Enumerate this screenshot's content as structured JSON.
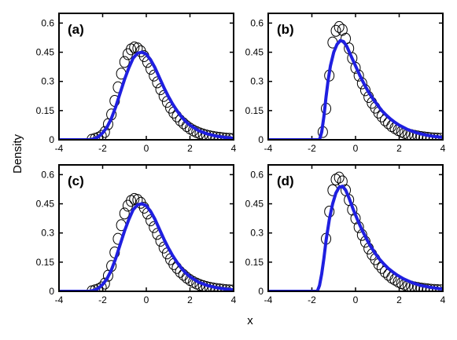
{
  "figure": {
    "ylabel": "Density",
    "xlabel": "x",
    "colors": {
      "curve": "#1f1fe0",
      "markers": "#000000",
      "frame": "#000000"
    }
  },
  "chart_data": [
    {
      "type": "line",
      "panel_label": "(a)",
      "xlim": [
        -4,
        4
      ],
      "ylim": [
        0,
        0.65
      ],
      "x_ticks": [
        -4,
        -2,
        0,
        2,
        4
      ],
      "x_tick_labels": [
        "-4",
        "-2",
        "0",
        "2",
        "4"
      ],
      "y_ticks": [
        0,
        0.15,
        0.3,
        0.45,
        0.6
      ],
      "y_tick_labels": [
        "0",
        "0.15",
        "0.3",
        "0.45",
        "0.6"
      ],
      "grid": false,
      "series": [
        {
          "kind": "markers",
          "x": [
            -2.5,
            -2.35,
            -2.2,
            -2.05,
            -1.9,
            -1.75,
            -1.6,
            -1.45,
            -1.3,
            -1.15,
            -1.0,
            -0.85,
            -0.7,
            -0.55,
            -0.4,
            -0.25,
            -0.1,
            0.05,
            0.2,
            0.35,
            0.5,
            0.65,
            0.8,
            0.95,
            1.1,
            1.25,
            1.4,
            1.55,
            1.7,
            1.85,
            2.0,
            2.15,
            2.3,
            2.45,
            2.6,
            2.75,
            2.9,
            3.05,
            3.2,
            3.35,
            3.5,
            3.65,
            3.8,
            3.95
          ],
          "y": [
            0.0,
            0.005,
            0.01,
            0.02,
            0.04,
            0.08,
            0.13,
            0.2,
            0.27,
            0.34,
            0.4,
            0.44,
            0.465,
            0.475,
            0.47,
            0.455,
            0.43,
            0.4,
            0.365,
            0.33,
            0.295,
            0.26,
            0.225,
            0.195,
            0.165,
            0.14,
            0.12,
            0.1,
            0.085,
            0.07,
            0.058,
            0.048,
            0.04,
            0.033,
            0.027,
            0.022,
            0.018,
            0.015,
            0.012,
            0.01,
            0.008,
            0.006,
            0.005,
            0.004
          ]
        },
        {
          "kind": "curve",
          "x": [
            -4,
            -2.6,
            -2.4,
            -2.2,
            -2.0,
            -1.8,
            -1.6,
            -1.4,
            -1.2,
            -1.0,
            -0.8,
            -0.6,
            -0.4,
            -0.2,
            0.0,
            0.2,
            0.4,
            0.6,
            0.8,
            1.0,
            1.2,
            1.4,
            1.6,
            1.8,
            2.0,
            2.4,
            2.8,
            3.2,
            3.6,
            4.0
          ],
          "y": [
            0.0,
            0.0,
            0.005,
            0.015,
            0.035,
            0.065,
            0.11,
            0.17,
            0.24,
            0.31,
            0.37,
            0.42,
            0.445,
            0.45,
            0.44,
            0.41,
            0.37,
            0.32,
            0.27,
            0.225,
            0.185,
            0.15,
            0.12,
            0.095,
            0.075,
            0.047,
            0.03,
            0.019,
            0.012,
            0.008
          ]
        }
      ]
    },
    {
      "type": "line",
      "panel_label": "(b)",
      "xlim": [
        -4,
        4
      ],
      "ylim": [
        0,
        0.65
      ],
      "x_ticks": [
        -4,
        -2,
        0,
        2,
        4
      ],
      "x_tick_labels": [
        "-4",
        "-2",
        "0",
        "2",
        "4"
      ],
      "y_ticks": [
        0,
        0.15,
        0.3,
        0.45,
        0.6
      ],
      "y_tick_labels": [
        "0",
        "0.15",
        "0.3",
        "0.45",
        "0.6"
      ],
      "grid": false,
      "series": [
        {
          "kind": "markers",
          "x": [
            -1.5,
            -1.35,
            -1.2,
            -1.05,
            -0.9,
            -0.75,
            -0.6,
            -0.45,
            -0.3,
            -0.15,
            0.0,
            0.15,
            0.3,
            0.45,
            0.6,
            0.75,
            0.9,
            1.05,
            1.2,
            1.35,
            1.5,
            1.65,
            1.8,
            1.95,
            2.1,
            2.25,
            2.4,
            2.55,
            2.7,
            2.85,
            3.0,
            3.15,
            3.3,
            3.45,
            3.6,
            3.75,
            3.9
          ],
          "y": [
            0.04,
            0.16,
            0.33,
            0.5,
            0.56,
            0.58,
            0.565,
            0.52,
            0.47,
            0.42,
            0.37,
            0.33,
            0.29,
            0.255,
            0.22,
            0.19,
            0.165,
            0.14,
            0.12,
            0.1,
            0.085,
            0.07,
            0.06,
            0.05,
            0.042,
            0.035,
            0.029,
            0.024,
            0.02,
            0.017,
            0.014,
            0.012,
            0.01,
            0.008,
            0.007,
            0.006,
            0.005
          ]
        },
        {
          "kind": "curve",
          "x": [
            -4,
            -1.65,
            -1.55,
            -1.45,
            -1.35,
            -1.25,
            -1.15,
            -1.0,
            -0.85,
            -0.7,
            -0.55,
            -0.4,
            -0.2,
            0.0,
            0.2,
            0.4,
            0.6,
            0.8,
            1.0,
            1.2,
            1.4,
            1.6,
            1.8,
            2.0,
            2.4,
            2.8,
            3.2,
            3.6,
            4.0
          ],
          "y": [
            0.0,
            0.0,
            0.04,
            0.12,
            0.22,
            0.31,
            0.38,
            0.45,
            0.49,
            0.51,
            0.505,
            0.48,
            0.43,
            0.38,
            0.33,
            0.285,
            0.245,
            0.21,
            0.18,
            0.15,
            0.127,
            0.107,
            0.09,
            0.075,
            0.052,
            0.036,
            0.025,
            0.017,
            0.012
          ]
        }
      ]
    },
    {
      "type": "line",
      "panel_label": "(c)",
      "xlim": [
        -4,
        4
      ],
      "ylim": [
        0,
        0.65
      ],
      "x_ticks": [
        -4,
        -2,
        0,
        2,
        4
      ],
      "x_tick_labels": [
        "-4",
        "-2",
        "0",
        "2",
        "4"
      ],
      "y_ticks": [
        0,
        0.15,
        0.3,
        0.45,
        0.6
      ],
      "y_tick_labels": [
        "0",
        "0.15",
        "0.3",
        "0.45",
        "0.6"
      ],
      "grid": false,
      "series": [
        {
          "kind": "markers",
          "x": [
            -2.5,
            -2.35,
            -2.2,
            -2.05,
            -1.9,
            -1.75,
            -1.6,
            -1.45,
            -1.3,
            -1.15,
            -1.0,
            -0.85,
            -0.7,
            -0.55,
            -0.4,
            -0.25,
            -0.1,
            0.05,
            0.2,
            0.35,
            0.5,
            0.65,
            0.8,
            0.95,
            1.1,
            1.25,
            1.4,
            1.55,
            1.7,
            1.85,
            2.0,
            2.15,
            2.3,
            2.45,
            2.6,
            2.75,
            2.9,
            3.05,
            3.2,
            3.35,
            3.5,
            3.65,
            3.8,
            3.95
          ],
          "y": [
            0.0,
            0.005,
            0.01,
            0.02,
            0.04,
            0.08,
            0.13,
            0.2,
            0.27,
            0.34,
            0.4,
            0.44,
            0.465,
            0.475,
            0.47,
            0.455,
            0.43,
            0.4,
            0.365,
            0.33,
            0.295,
            0.26,
            0.225,
            0.195,
            0.165,
            0.14,
            0.12,
            0.1,
            0.085,
            0.07,
            0.058,
            0.048,
            0.04,
            0.033,
            0.027,
            0.022,
            0.018,
            0.015,
            0.012,
            0.01,
            0.008,
            0.006,
            0.005,
            0.004
          ]
        },
        {
          "kind": "curve",
          "x": [
            -4,
            -2.6,
            -2.4,
            -2.2,
            -2.0,
            -1.8,
            -1.6,
            -1.4,
            -1.2,
            -1.0,
            -0.8,
            -0.6,
            -0.4,
            -0.2,
            0.0,
            0.2,
            0.4,
            0.6,
            0.8,
            1.0,
            1.2,
            1.4,
            1.6,
            1.8,
            2.0,
            2.4,
            2.8,
            3.2,
            3.6,
            4.0
          ],
          "y": [
            0.0,
            0.0,
            0.005,
            0.015,
            0.035,
            0.065,
            0.11,
            0.17,
            0.24,
            0.31,
            0.37,
            0.42,
            0.445,
            0.45,
            0.44,
            0.41,
            0.37,
            0.32,
            0.27,
            0.225,
            0.185,
            0.15,
            0.12,
            0.095,
            0.075,
            0.047,
            0.03,
            0.019,
            0.012,
            0.008
          ]
        }
      ]
    },
    {
      "type": "line",
      "panel_label": "(d)",
      "xlim": [
        -4,
        4
      ],
      "ylim": [
        0,
        0.65
      ],
      "x_ticks": [
        -4,
        -2,
        0,
        2,
        4
      ],
      "x_tick_labels": [
        "-4",
        "-2",
        "0",
        "2",
        "4"
      ],
      "y_ticks": [
        0,
        0.15,
        0.3,
        0.45,
        0.6
      ],
      "y_tick_labels": [
        "0",
        "0.15",
        "0.3",
        "0.45",
        "0.6"
      ],
      "grid": false,
      "series": [
        {
          "kind": "markers",
          "x": [
            -1.35,
            -1.2,
            -1.05,
            -0.9,
            -0.75,
            -0.6,
            -0.45,
            -0.3,
            -0.15,
            0.0,
            0.15,
            0.3,
            0.45,
            0.6,
            0.75,
            0.9,
            1.05,
            1.2,
            1.35,
            1.5,
            1.65,
            1.8,
            1.95,
            2.1,
            2.25,
            2.4,
            2.55,
            2.7,
            2.85,
            3.0,
            3.15,
            3.3,
            3.45,
            3.6,
            3.75,
            3.9
          ],
          "y": [
            0.27,
            0.41,
            0.52,
            0.575,
            0.585,
            0.565,
            0.52,
            0.47,
            0.42,
            0.375,
            0.33,
            0.29,
            0.255,
            0.22,
            0.19,
            0.165,
            0.14,
            0.12,
            0.1,
            0.085,
            0.07,
            0.06,
            0.05,
            0.042,
            0.035,
            0.029,
            0.024,
            0.02,
            0.017,
            0.014,
            0.012,
            0.01,
            0.008,
            0.007,
            0.006,
            0.005
          ]
        },
        {
          "kind": "curve",
          "x": [
            -4,
            -1.75,
            -1.65,
            -1.55,
            -1.45,
            -1.35,
            -1.2,
            -1.05,
            -0.9,
            -0.75,
            -0.6,
            -0.45,
            -0.3,
            -0.1,
            0.1,
            0.3,
            0.5,
            0.7,
            0.9,
            1.1,
            1.3,
            1.5,
            1.7,
            1.9,
            2.2,
            2.6,
            3.0,
            3.4,
            3.8,
            4.0
          ],
          "y": [
            0.0,
            0.0,
            0.03,
            0.09,
            0.17,
            0.26,
            0.37,
            0.45,
            0.505,
            0.535,
            0.54,
            0.52,
            0.48,
            0.42,
            0.365,
            0.315,
            0.27,
            0.23,
            0.195,
            0.165,
            0.14,
            0.118,
            0.1,
            0.084,
            0.064,
            0.044,
            0.03,
            0.021,
            0.014,
            0.012
          ]
        }
      ]
    }
  ]
}
